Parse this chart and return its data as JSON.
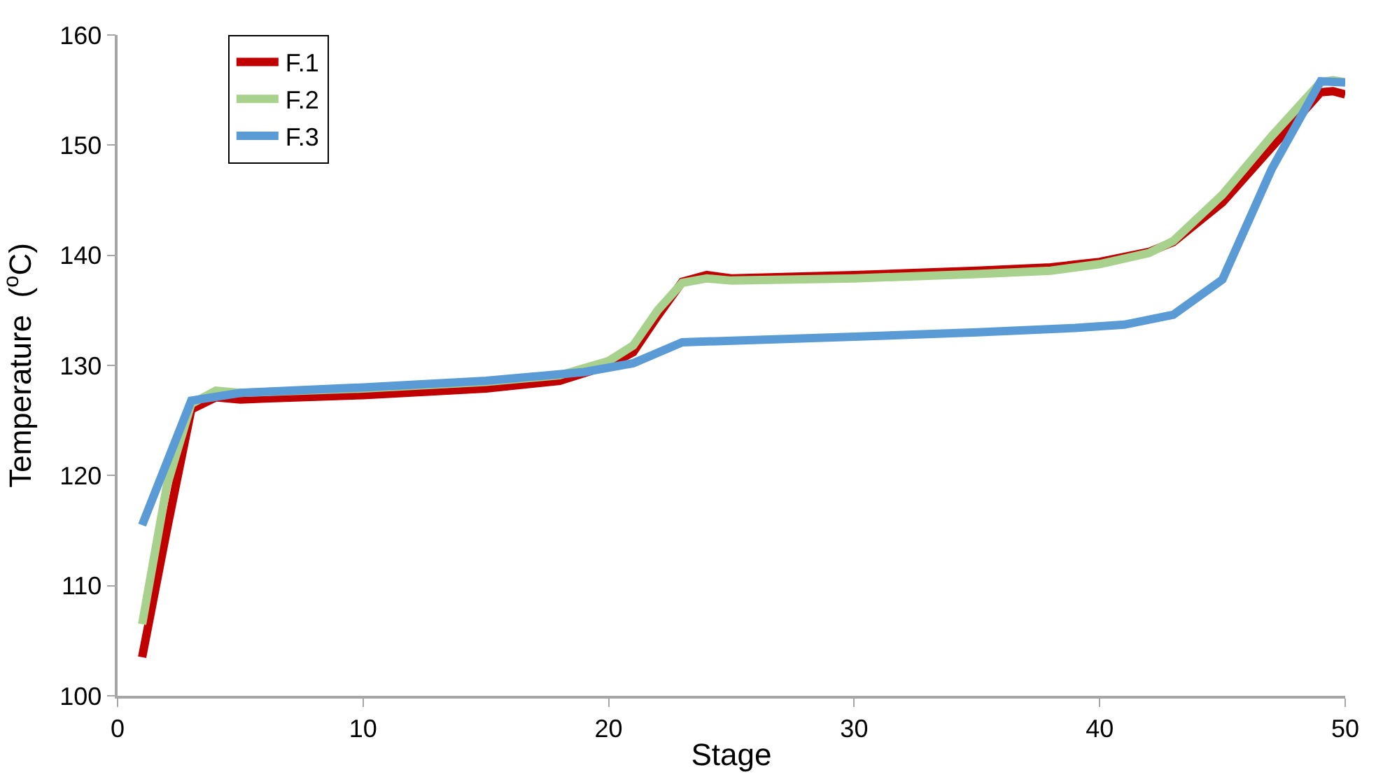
{
  "chart_data": {
    "type": "line",
    "xlabel": "Stage",
    "ylabel": "Temperature  ($^{o}$C)",
    "xlim": [
      0,
      50
    ],
    "xticks": [
      0,
      10,
      20,
      30,
      40,
      50
    ],
    "ylim": [
      100,
      160
    ],
    "yticks": [
      100,
      110,
      120,
      130,
      140,
      150,
      160
    ],
    "legend": "top left",
    "marker": "none",
    "line_style": "solid",
    "series": [
      {
        "name": "F.1",
        "color": "#c00000",
        "x": [
          1,
          2,
          3,
          4,
          5,
          6,
          10,
          15,
          18,
          20,
          21,
          22,
          23,
          24,
          25,
          30,
          35,
          38,
          40,
          42,
          43,
          45,
          47,
          49,
          49.5,
          50
        ],
        "values": [
          103.5,
          115,
          126,
          127.1,
          126.9,
          127,
          127.3,
          127.9,
          128.6,
          130,
          131.2,
          134.5,
          137.6,
          138.2,
          137.9,
          138.2,
          138.6,
          138.9,
          139.4,
          140.3,
          141.2,
          144.8,
          149.8,
          154.8,
          154.9,
          154.6
        ]
      },
      {
        "name": "F.2",
        "color": "#a9d18e",
        "x": [
          1,
          2,
          3,
          4,
          5,
          10,
          15,
          18,
          20,
          21,
          22,
          23,
          24,
          25,
          30,
          35,
          38,
          40,
          42,
          43,
          45,
          47,
          49,
          49.5,
          50
        ],
        "values": [
          106.5,
          119,
          126.5,
          127.7,
          127.5,
          127.9,
          128.5,
          129.1,
          130.4,
          131.8,
          135,
          137.5,
          137.9,
          137.7,
          137.9,
          138.3,
          138.6,
          139.2,
          140.2,
          141.3,
          145.5,
          150.8,
          155.7,
          155.9,
          155.7
        ]
      },
      {
        "name": "F.3",
        "color": "#5b9bd5",
        "x": [
          1,
          3,
          5,
          10,
          15,
          19,
          21,
          23,
          30,
          35,
          39,
          41,
          43,
          45,
          47,
          49,
          50
        ],
        "values": [
          115.5,
          126.8,
          127.5,
          128,
          128.6,
          129.4,
          130.2,
          132.1,
          132.6,
          133,
          133.4,
          133.7,
          134.6,
          137.8,
          147.8,
          155.8,
          155.7
        ]
      }
    ]
  }
}
